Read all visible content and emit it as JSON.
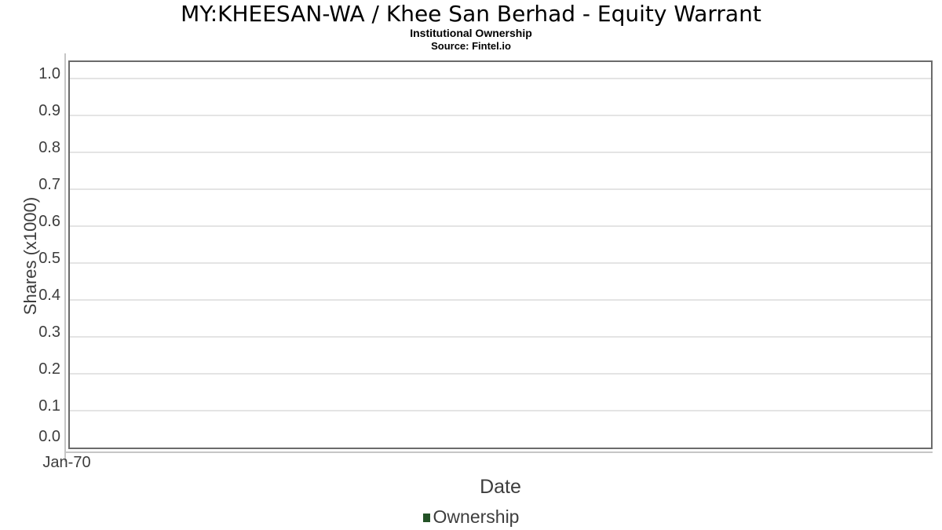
{
  "chart_data": {
    "type": "line",
    "title": "MY:KHEESAN-WA / Khee San Berhad - Equity Warrant",
    "subtitle": "Institutional Ownership",
    "source": "Source: Fintel.io",
    "xlabel": "Date",
    "ylabel": "Shares (x1000)",
    "x_tick_labels": [
      "Jan-70"
    ],
    "y_tick_labels": [
      "0.0",
      "0.1",
      "0.2",
      "0.3",
      "0.4",
      "0.5",
      "0.6",
      "0.7",
      "0.8",
      "0.9",
      "1.0"
    ],
    "ylim": [
      0.0,
      1.05
    ],
    "grid": "horizontal",
    "legend_position": "bottom-center",
    "series": [
      {
        "name": "Ownership",
        "color": "#235226",
        "values": []
      }
    ]
  },
  "colors": {
    "background": "#ffffff",
    "plot_border": "#6b6b6b",
    "gridline": "#e4e4e4",
    "axis_line": "#c6c6c6",
    "tick_text": "#3d3d3d",
    "title_text": "#000000",
    "legend_marker": "#235226"
  }
}
